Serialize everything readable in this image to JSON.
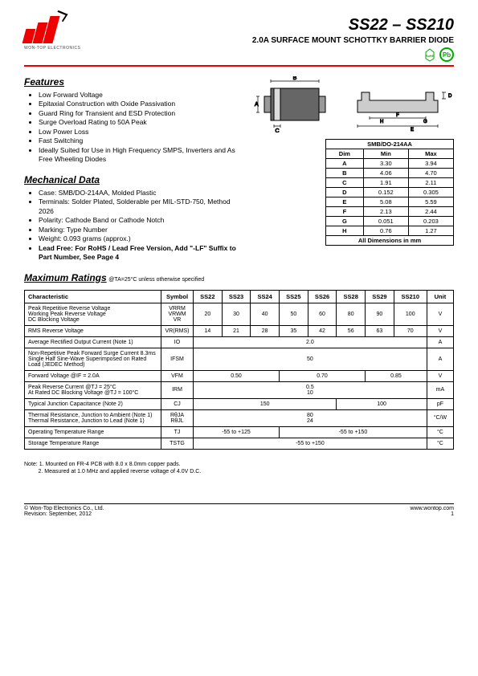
{
  "header": {
    "logo_text": "WON-TOP ELECTRONICS",
    "part_title": "SS22 – SS210",
    "subtitle": "2.0A SURFACE MOUNT SCHOTTKY BARRIER DIODE",
    "badge_rohs": "RoHS",
    "badge_pb": "Pb"
  },
  "features": {
    "heading": "Features",
    "items": [
      "Low Forward Voltage",
      "Epitaxial Construction with Oxide Passivation",
      "Guard Ring for Transient and ESD Protection",
      "Surge Overload Rating to 50A Peak",
      "Low Power Loss",
      "Fast Switching",
      "Ideally Suited for Use in High Frequency SMPS, Inverters and As Free Wheeling Diodes"
    ]
  },
  "mechanical": {
    "heading": "Mechanical Data",
    "items": [
      "Case: SMB/DO-214AA, Molded Plastic",
      "Terminals: Solder Plated, Solderable per MIL-STD-750, Method 2026",
      "Polarity: Cathode Band or Cathode Notch",
      "Marking: Type Number",
      "Weight: 0.093 grams (approx.)"
    ],
    "bold_item": "Lead Free: For RoHS / Lead Free Version, Add \"-LF\" Suffix to Part Number, See Page 4"
  },
  "dimensions": {
    "title": "SMB/DO-214AA",
    "cols": [
      "Dim",
      "Min",
      "Max"
    ],
    "rows": [
      [
        "A",
        "3.30",
        "3.94"
      ],
      [
        "B",
        "4.06",
        "4.70"
      ],
      [
        "C",
        "1.91",
        "2.11"
      ],
      [
        "D",
        "0.152",
        "0.305"
      ],
      [
        "E",
        "5.08",
        "5.59"
      ],
      [
        "F",
        "2.13",
        "2.44"
      ],
      [
        "G",
        "0.051",
        "0.203"
      ],
      [
        "H",
        "0.76",
        "1.27"
      ]
    ],
    "footer": "All Dimensions in mm"
  },
  "ratings": {
    "heading": "Maximum Ratings",
    "cond": "@TA=25°C unless otherwise specified",
    "cols": [
      "Characteristic",
      "Symbol",
      "SS22",
      "SS23",
      "SS24",
      "SS25",
      "SS26",
      "SS28",
      "SS29",
      "SS210",
      "Unit"
    ],
    "rows": [
      {
        "char": "Peak Repetitive Reverse Voltage\nWorking Peak Reverse Voltage\nDC Blocking Voltage",
        "sym": "VRRM\nVRWM\nVR",
        "vals": [
          "20",
          "30",
          "40",
          "50",
          "60",
          "80",
          "90",
          "100"
        ],
        "unit": "V"
      },
      {
        "char": "RMS Reverse Voltage",
        "sym": "VR(RMS)",
        "vals": [
          "14",
          "21",
          "28",
          "35",
          "42",
          "56",
          "63",
          "70"
        ],
        "unit": "V"
      },
      {
        "char": "Average Rectified Output Current (Note 1)",
        "sym": "IO",
        "span": "2.0",
        "unit": "A"
      },
      {
        "char": "Non-Repetitive Peak Forward Surge Current 8.3ms Single Half Sine-Wave Superimposed on Rated Load (JEDEC Method)",
        "sym": "IFSM",
        "span": "50",
        "unit": "A"
      },
      {
        "char": "Forward Voltage                         @IF = 2.0A",
        "sym": "VFM",
        "groups": [
          {
            "c": 3,
            "v": "0.50"
          },
          {
            "c": 3,
            "v": "0.70"
          },
          {
            "c": 2,
            "v": "0.85"
          }
        ],
        "unit": "V"
      },
      {
        "char": "Peak Reverse Current        @TJ = 25°C\nAt Rated DC Blocking Voltage    @TJ = 100°C",
        "sym": "IRM",
        "span": "0.5\n10",
        "unit": "mA"
      },
      {
        "char": "Typical Junction Capacitance (Note 2)",
        "sym": "CJ",
        "groups": [
          {
            "c": 5,
            "v": "150"
          },
          {
            "c": 3,
            "v": "100"
          }
        ],
        "unit": "pF"
      },
      {
        "char": "Thermal Resistance, Junction to Ambient (Note 1)\nThermal Resistance, Junction to Lead (Note 1)",
        "sym": "RθJA\nRθJL",
        "span": "80\n24",
        "unit": "°C/W"
      },
      {
        "char": "Operating Temperature Range",
        "sym": "TJ",
        "groups": [
          {
            "c": 3,
            "v": "-55 to +125"
          },
          {
            "c": 5,
            "v": "-55 to +150"
          }
        ],
        "unit": "°C"
      },
      {
        "char": "Storage Temperature Range",
        "sym": "TSTG",
        "span": "-55 to +150",
        "unit": "°C"
      }
    ]
  },
  "notes": {
    "label": "Note:",
    "n1": "1. Mounted on FR-4 PCB with 8.0 x 8.0mm copper pads.",
    "n2": "2. Measured at 1.0 MHz and applied reverse voltage of 4.0V D.C."
  },
  "footer": {
    "left1": "© Won-Top Electronics Co., Ltd.",
    "left2": "Revision: September, 2012",
    "right": "www.wontop.com",
    "page": "1"
  }
}
